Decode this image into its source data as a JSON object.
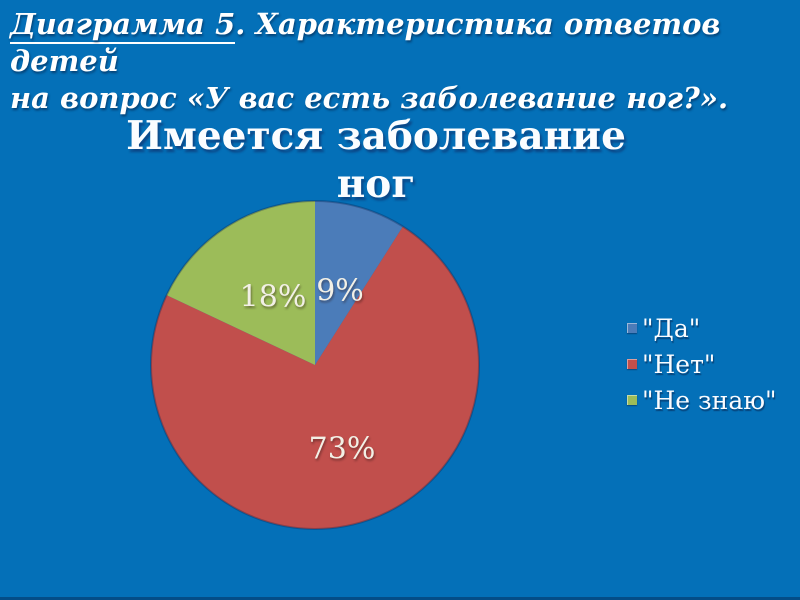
{
  "slide": {
    "title_underlined": "Диаграмма 5",
    "title_rest_line1": ". Характеристика ответов детей",
    "title_line2": "на вопрос «У вас есть заболевание ног?».",
    "background_color": "#0470B8"
  },
  "chart_data": {
    "type": "pie",
    "title": "Имеется заболевание ног",
    "legend_position": "right",
    "start_angle_deg": 0,
    "direction": "clockwise",
    "slices": [
      {
        "name": "\"Да\"",
        "value": 9,
        "label": "9%",
        "color": "#4B7CB9"
      },
      {
        "name": "\"Нет\"",
        "value": 73,
        "label": "73%",
        "color": "#C14F4C"
      },
      {
        "name": "\"Не знаю\"",
        "value": 18,
        "label": "18%",
        "color": "#9CBC59"
      }
    ],
    "label_color": "#F2F0E6",
    "outline_color": "rgba(10,25,70,0.30)"
  }
}
